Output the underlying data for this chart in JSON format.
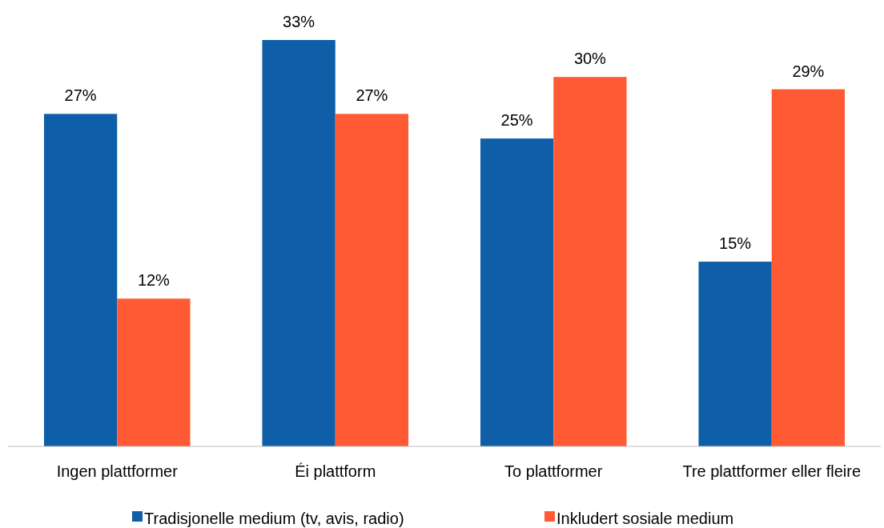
{
  "chart_data": {
    "type": "bar",
    "categories": [
      "Ingen plattformer",
      "Éi plattform",
      "To plattformer",
      "Tre plattformer eller fleire"
    ],
    "series": [
      {
        "name": "Tradisjonelle medium (tv, avis, radio)",
        "color": "#0f5ea8",
        "values": [
          27,
          33,
          25,
          15
        ],
        "value_labels": [
          "27%",
          "33%",
          "25%",
          "15%"
        ]
      },
      {
        "name": "Inkludert sosiale medium",
        "color": "#ff5a33",
        "values": [
          12,
          27,
          30,
          29
        ],
        "value_labels": [
          "12%",
          "27%",
          "30%",
          "29%"
        ]
      }
    ],
    "legend": "bottom"
  }
}
